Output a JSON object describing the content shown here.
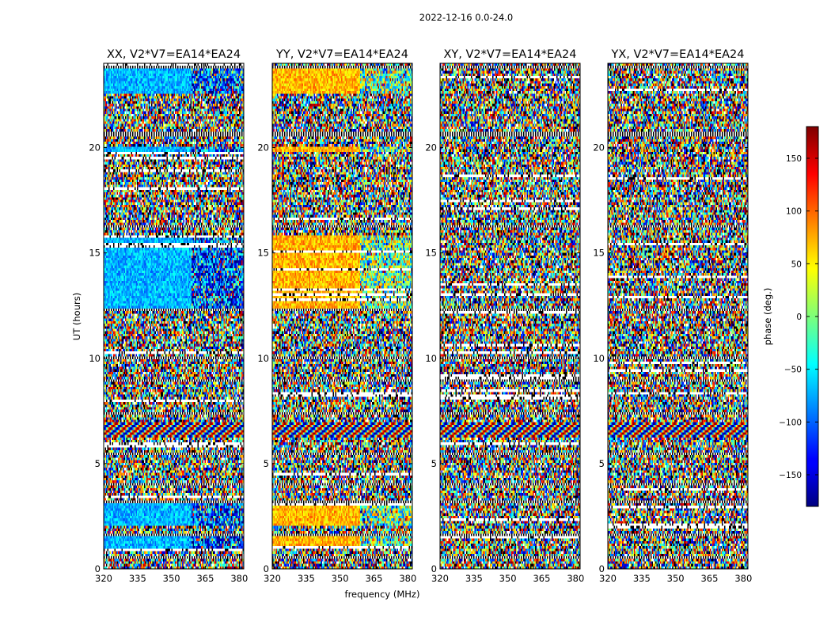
{
  "chart_data": {
    "type": "heatmap",
    "title": "2022-12-16 0.0-24.0",
    "xlabel": "frequency (MHz)",
    "ylabel": "UT (hours)",
    "colorbar_label": "phase (deg.)",
    "colormap": "jet",
    "xlim": [
      320,
      382
    ],
    "ylim": [
      0,
      24
    ],
    "clim": [
      -180,
      180
    ],
    "x_ticks": [
      320,
      335,
      350,
      365,
      380
    ],
    "y_ticks": [
      0,
      5,
      10,
      15,
      20
    ],
    "colorbar_ticks": [
      -150,
      -100,
      -50,
      0,
      50,
      100,
      150
    ],
    "colorbar_tick_labels": [
      "−150",
      "−100",
      "−50",
      "0",
      "50",
      "100",
      "150"
    ],
    "panels": [
      {
        "title": "XX, V2*V7=EA14*EA24",
        "base_phase_low": -70,
        "base_phase_high": -110
      },
      {
        "title": "YY, V2*V7=EA14*EA24",
        "base_phase_low": 70,
        "base_phase_high": -10
      },
      {
        "title": "XY, V2*V7=EA14*EA24",
        "base_phase_low": null,
        "base_phase_high": null
      },
      {
        "title": "YX, V2*V7=EA14*EA24",
        "base_phase_low": null,
        "base_phase_high": null
      }
    ],
    "coherent_time_ranges_hours": [
      [
        0.9,
        1.5
      ],
      [
        2.0,
        3.1
      ],
      [
        12.4,
        15.8
      ],
      [
        19.8,
        20.0
      ],
      [
        22.6,
        23.8
      ]
    ],
    "fringe_time_ranges_hours": [
      [
        6.2,
        7.0
      ]
    ],
    "flagged_time_ranges_hours": [
      [
        0.45,
        0.55
      ],
      [
        1.6,
        1.7
      ],
      [
        3.15,
        3.25
      ],
      [
        4.0,
        4.05
      ],
      [
        5.45,
        5.5
      ],
      [
        7.35,
        7.45
      ],
      [
        8.9,
        8.95
      ],
      [
        10.0,
        10.08
      ],
      [
        11.35,
        11.45
      ],
      [
        12.25,
        12.3
      ],
      [
        16.25,
        16.35
      ],
      [
        17.6,
        17.65
      ],
      [
        19.3,
        19.35
      ],
      [
        20.55,
        20.7
      ],
      [
        21.55,
        21.62
      ],
      [
        22.05,
        22.12
      ],
      [
        22.55,
        22.6
      ],
      [
        23.8,
        23.9
      ]
    ]
  }
}
